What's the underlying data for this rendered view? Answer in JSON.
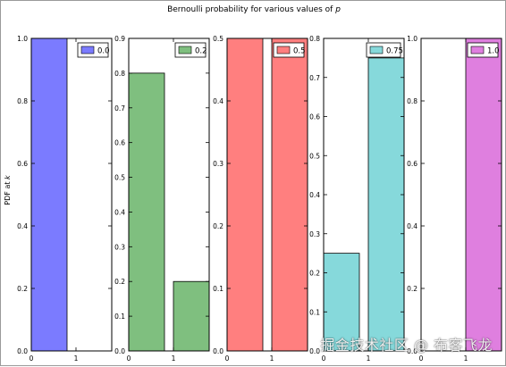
{
  "figure": {
    "title_text": "Bernoulli probability for various values of ",
    "title_math": "p",
    "ylabel_text": "PDF at ",
    "ylabel_math": "k",
    "watermark": "掘金技术社区 @ 布客飞龙"
  },
  "chart_data": [
    {
      "type": "bar",
      "legend": "0.0",
      "legend_position": "top-right",
      "color": "#7b7bff",
      "categories": [
        0,
        1
      ],
      "values": [
        1.0,
        0.0
      ],
      "xlim": [
        0,
        1.8
      ],
      "ylim": [
        0,
        1.0
      ],
      "xticks": [
        "0",
        "1"
      ],
      "yticks": [
        "0.0",
        "0.2",
        "0.4",
        "0.6",
        "0.8",
        "1.0"
      ]
    },
    {
      "type": "bar",
      "legend": "0.2",
      "legend_position": "top-right",
      "color": "#7fbf7f",
      "categories": [
        0,
        1
      ],
      "values": [
        0.8,
        0.2
      ],
      "xlim": [
        0,
        1.8
      ],
      "ylim": [
        0,
        0.9
      ],
      "xticks": [
        "0",
        "1"
      ],
      "yticks": [
        "0.0",
        "0.1",
        "0.2",
        "0.3",
        "0.4",
        "0.5",
        "0.6",
        "0.7",
        "0.8",
        "0.9"
      ]
    },
    {
      "type": "bar",
      "legend": "0.5",
      "legend_position": "top-right",
      "color": "#ff7f7f",
      "categories": [
        0,
        1
      ],
      "values": [
        0.5,
        0.5
      ],
      "xlim": [
        0,
        1.8
      ],
      "ylim": [
        0,
        0.5
      ],
      "xticks": [
        "0",
        "1"
      ],
      "yticks": [
        "0.0",
        "0.1",
        "0.2",
        "0.3",
        "0.4",
        "0.5"
      ]
    },
    {
      "type": "bar",
      "legend": "0.75",
      "legend_position": "top-right",
      "color": "#86d9db",
      "categories": [
        0,
        1
      ],
      "values": [
        0.25,
        0.75
      ],
      "xlim": [
        0,
        1.8
      ],
      "ylim": [
        0,
        0.8
      ],
      "xticks": [
        "0",
        "1"
      ],
      "yticks": [
        "0.0",
        "0.1",
        "0.2",
        "0.3",
        "0.4",
        "0.5",
        "0.6",
        "0.7",
        "0.8"
      ]
    },
    {
      "type": "bar",
      "legend": "1.0",
      "legend_position": "top-right",
      "color": "#df7fdf",
      "categories": [
        0,
        1
      ],
      "values": [
        0.0,
        1.0
      ],
      "xlim": [
        0,
        1.8
      ],
      "ylim": [
        0,
        1.0
      ],
      "xticks": [
        "0",
        "1"
      ],
      "yticks": [
        "0.0",
        "0.2",
        "0.4",
        "0.6",
        "0.8",
        "1.0"
      ]
    }
  ]
}
